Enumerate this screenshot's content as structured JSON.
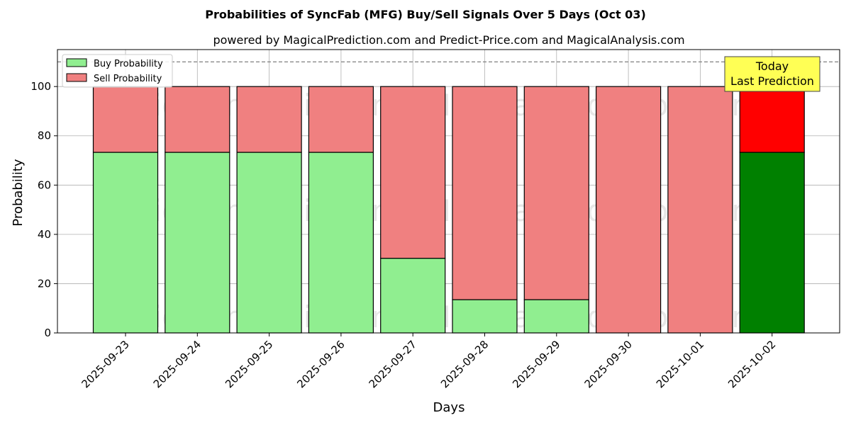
{
  "chart_data": {
    "type": "bar",
    "stacked": true,
    "title": "Probabilities of SyncFab (MFG) Buy/Sell Signals Over 5 Days (Oct 03)",
    "subtitle": "powered by MagicalPrediction.com and Predict-Price.com and MagicalAnalysis.com",
    "xlabel": "Days",
    "ylabel": "Probability",
    "ylim": [
      0,
      115
    ],
    "yticks": [
      0,
      20,
      40,
      60,
      80,
      100
    ],
    "grid": true,
    "legend_position": "top-left",
    "reference_line": {
      "y": 110,
      "style": "dashed"
    },
    "categories": [
      "2025-09-23",
      "2025-09-24",
      "2025-09-25",
      "2025-09-26",
      "2025-09-27",
      "2025-09-28",
      "2025-09-29",
      "2025-09-30",
      "2025-10-01",
      "2025-10-02"
    ],
    "series": [
      {
        "name": "Buy Probability",
        "color": "#90ee90",
        "values": [
          73.3,
          73.3,
          73.3,
          73.3,
          30.3,
          13.5,
          13.5,
          0,
          0,
          73.3
        ]
      },
      {
        "name": "Sell Probability",
        "color": "#f08080",
        "values": [
          26.7,
          26.7,
          26.7,
          26.7,
          69.7,
          86.5,
          86.5,
          100,
          100,
          26.7
        ]
      }
    ],
    "highlight": {
      "index": 9,
      "buy_color": "#008000",
      "sell_color": "#ff0000"
    },
    "annotation": {
      "lines": [
        "Today",
        "Last Prediction"
      ],
      "background": "#ffff55"
    },
    "watermarks": [
      "MagicalAnalysis.com",
      "MagicalPrediction.com"
    ]
  }
}
